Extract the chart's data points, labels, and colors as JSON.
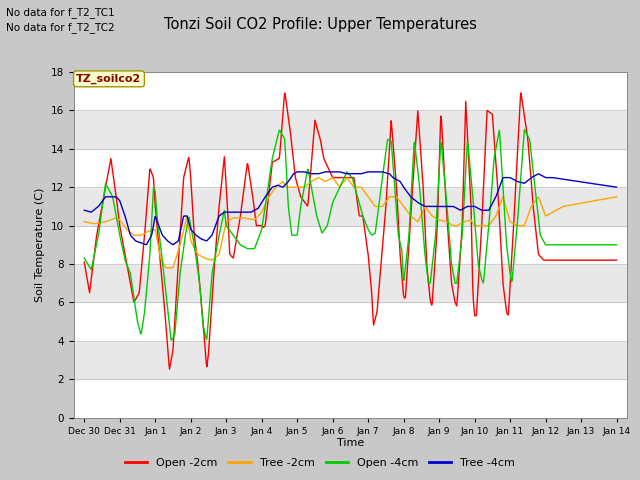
{
  "title": "Tonzi Soil CO2 Profile: Upper Temperatures",
  "xlabel": "Time",
  "ylabel": "Soil Temperature (C)",
  "ylim": [
    0,
    18
  ],
  "yticks": [
    0,
    2,
    4,
    6,
    8,
    10,
    12,
    14,
    16,
    18
  ],
  "annotations": [
    "No data for f_T2_TC1",
    "No data for f_T2_TC2"
  ],
  "box_label": "TZ_soilco2",
  "colors": {
    "open_2cm": "#ff0000",
    "tree_2cm": "#ffa500",
    "open_4cm": "#00cc00",
    "tree_4cm": "#0000cc"
  },
  "legend_labels": [
    "Open -2cm",
    "Tree -2cm",
    "Open -4cm",
    "Tree -4cm"
  ],
  "tick_labels": [
    "Dec 30",
    "Dec 31",
    "Jan 1",
    "Jan 2",
    "Jan 3",
    "Jan 4",
    "Jan 5",
    "Jan 6",
    "Jan 7",
    "Jan 8",
    "Jan 9",
    "Jan 10",
    "Jan 11",
    "Jan 12",
    "Jan 13",
    "Jan 14"
  ],
  "band_colors": [
    "#ffffff",
    "#e8e8e8"
  ],
  "fig_bg": "#c8c8c8"
}
